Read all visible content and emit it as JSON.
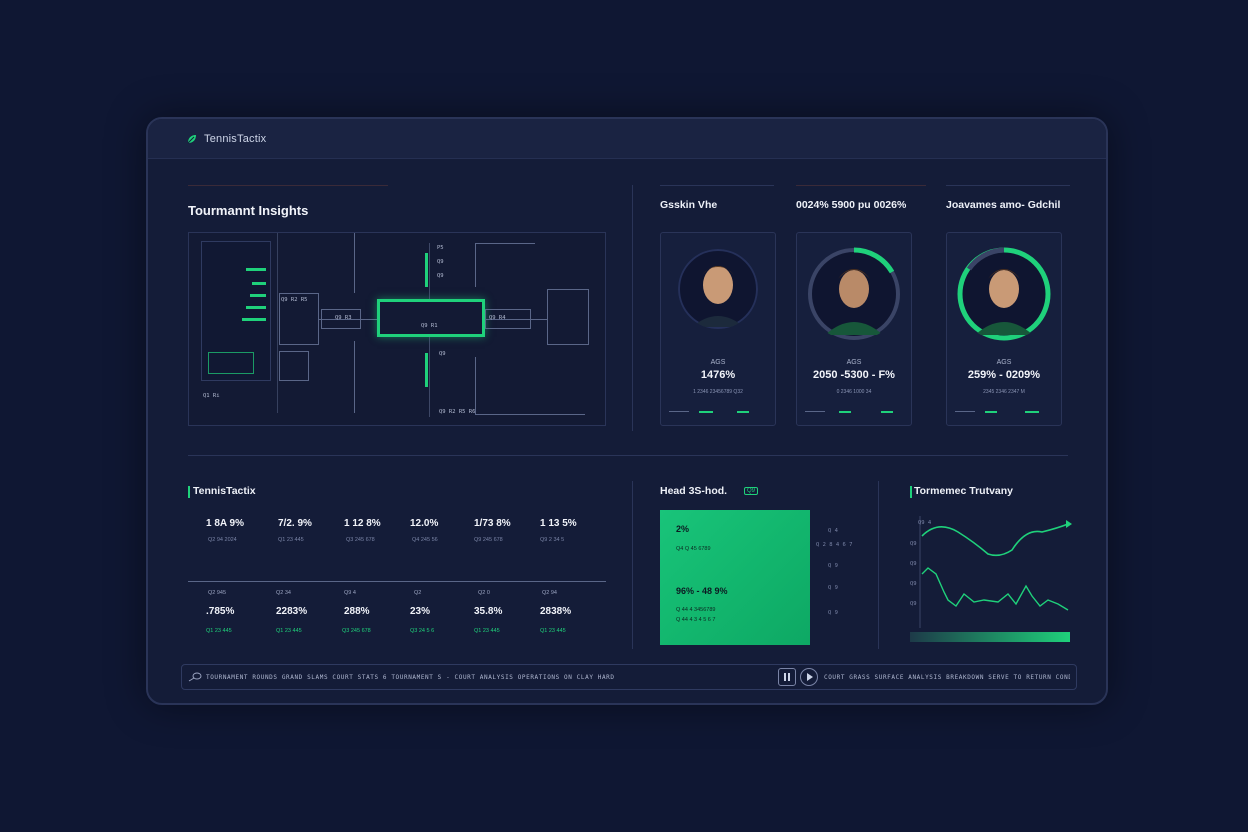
{
  "app": {
    "brand": "TennisTactix"
  },
  "tournament": {
    "title": "Tourmannt Insights",
    "bracket_texts": [
      "Q1 Ri",
      "P5",
      "Q9",
      "Q9",
      "Q9",
      "Q9 R1",
      "Q9 R3",
      "Q9 R4",
      "Q9 R2 R5",
      "Q9 R2 R5 R6"
    ]
  },
  "players": {
    "headers": [
      "Gsskin Vhe",
      "0024% 5900 pu 0026%",
      "Joavames amo- Gdchil"
    ],
    "cards": [
      {
        "label": "AGS",
        "value": "1476%",
        "desc": "1 2346 23456789 Q32",
        "ring_pct": 0
      },
      {
        "label": "AGS",
        "value": "2050 -5300 - F%",
        "desc": "0 2346 1000 34",
        "ring_pct": 30
      },
      {
        "label": "AGS",
        "value": "259% - 0209%",
        "desc": "2345 2346 2347 M",
        "ring_pct": 80
      }
    ]
  },
  "stats": {
    "title": "TennisTactix",
    "top_row": [
      {
        "value": "1 8A 9%",
        "sub": "Q2 94 2024"
      },
      {
        "value": "7/2. 9%",
        "sub": "Q1 23 445"
      },
      {
        "value": "1 12 8%",
        "sub": "Q3 245 678"
      },
      {
        "value": "12.0%",
        "sub": "Q4 245 56"
      },
      {
        "value": "1/73 8%",
        "sub": "Q9 245 678"
      },
      {
        "value": "1 13 5%",
        "sub": "Q9 2 34 5"
      }
    ],
    "bottom_row": [
      {
        "header": "Q2 945",
        "value": ".785%",
        "link": "Q1 23 445"
      },
      {
        "header": "Q2 34",
        "value": "2283%",
        "link": "Q1 23 445"
      },
      {
        "header": "Q9 4",
        "value": "288%",
        "link": "Q3 245 678"
      },
      {
        "header": "Q2",
        "value": "23%",
        "link": "Q3 24 5 6"
      },
      {
        "header": "Q2 0",
        "value": "35.8%",
        "link": "Q1 23 445"
      },
      {
        "header": "Q2 94",
        "value": "2838%",
        "link": "Q1 23 445"
      }
    ]
  },
  "h2h": {
    "title": "Head 3S-hod.",
    "badge": "Q9",
    "top_value": "2%",
    "top_sub": "Q4 Q 45 6789",
    "mid_value": "96% - 48 9%",
    "mid_sub_1": "Q 44 4 3456789",
    "mid_sub_2": "Q 44 4 3 4 5 6 7",
    "side_labels": [
      "Q 4",
      "Q 2 8 4 6 7",
      "Q 9",
      "Q 9"
    ]
  },
  "trend": {
    "title": "Tormemeс Trutvany",
    "y_labels": [
      "Q9 4",
      "Q9",
      "Q9",
      "Q9",
      "Q9"
    ]
  },
  "ticker": {
    "left_text": "TOURNAMENT ROUNDS GRAND SLAMS COURT STATS 6 TOURNAMENT S - COURT ANALYSIS OPERATIONS ON CLAY HARD",
    "right_text": "COURT GRASS SURFACE ANALYSIS BREAKDOWN SERVE TO RETURN CONDITIONS"
  },
  "colors": {
    "accent": "#1fd17b",
    "bg": "#0f1733",
    "panel": "#141c38"
  }
}
